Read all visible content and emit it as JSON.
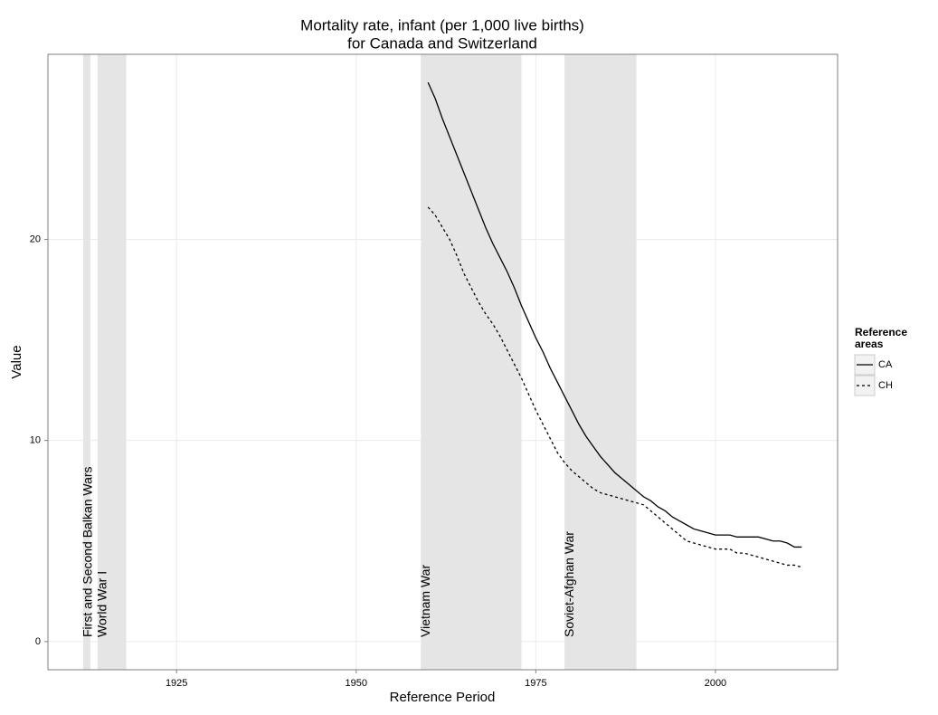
{
  "chart_data": {
    "type": "line",
    "title": [
      "Mortality rate, infant (per 1,000 live births)",
      "for Canada and Switzerland"
    ],
    "x_label": "Reference Period",
    "y_label": "Value",
    "legend_title": "Reference areas",
    "xlim": [
      1907.1,
      2017.0
    ],
    "ylim": [
      -1.4,
      29.2
    ],
    "xticks": [
      1925,
      1950,
      1975,
      2000
    ],
    "yticks": [
      0,
      10,
      20
    ],
    "grid": true,
    "periods": [
      {
        "label": "First and Second Balkan Wars",
        "start": 1912,
        "end": 1913
      },
      {
        "label": "World War I",
        "start": 1914,
        "end": 1918
      },
      {
        "label": "Vietnam War",
        "start": 1959,
        "end": 1973
      },
      {
        "label": "Soviet-Afghan War",
        "start": 1979,
        "end": 1989
      }
    ],
    "x": [
      1960,
      1961,
      1962,
      1963,
      1964,
      1965,
      1966,
      1967,
      1968,
      1969,
      1970,
      1971,
      1972,
      1973,
      1974,
      1975,
      1976,
      1977,
      1978,
      1979,
      1980,
      1981,
      1982,
      1983,
      1984,
      1985,
      1986,
      1987,
      1988,
      1989,
      1990,
      1991,
      1992,
      1993,
      1994,
      1995,
      1996,
      1997,
      1998,
      1999,
      2000,
      2001,
      2002,
      2003,
      2004,
      2005,
      2006,
      2007,
      2008,
      2009,
      2010,
      2011,
      2012
    ],
    "series": [
      {
        "name": "CA",
        "color": "#000000",
        "linestyle": "solid",
        "values": [
          27.8,
          27.0,
          26.0,
          25.1,
          24.2,
          23.3,
          22.4,
          21.5,
          20.6,
          19.8,
          19.1,
          18.4,
          17.6,
          16.7,
          15.9,
          15.1,
          14.4,
          13.6,
          12.9,
          12.2,
          11.5,
          10.8,
          10.2,
          9.7,
          9.2,
          8.8,
          8.4,
          8.1,
          7.8,
          7.5,
          7.2,
          7.0,
          6.7,
          6.5,
          6.2,
          6.0,
          5.8,
          5.6,
          5.5,
          5.4,
          5.3,
          5.3,
          5.3,
          5.2,
          5.2,
          5.2,
          5.2,
          5.1,
          5.0,
          5.0,
          4.9,
          4.7,
          4.7
        ]
      },
      {
        "name": "CH",
        "color": "#000000",
        "linestyle": "dotted",
        "values": [
          21.6,
          21.2,
          20.6,
          20.0,
          19.2,
          18.3,
          17.6,
          16.9,
          16.3,
          15.8,
          15.2,
          14.5,
          13.8,
          13.1,
          12.3,
          11.5,
          10.8,
          10.1,
          9.4,
          8.9,
          8.5,
          8.2,
          7.9,
          7.6,
          7.4,
          7.3,
          7.2,
          7.1,
          7.0,
          6.9,
          6.8,
          6.5,
          6.2,
          5.9,
          5.6,
          5.3,
          5.0,
          4.9,
          4.8,
          4.7,
          4.6,
          4.6,
          4.6,
          4.4,
          4.4,
          4.3,
          4.2,
          4.1,
          4.0,
          3.9,
          3.8,
          3.8,
          3.7
        ]
      }
    ]
  }
}
